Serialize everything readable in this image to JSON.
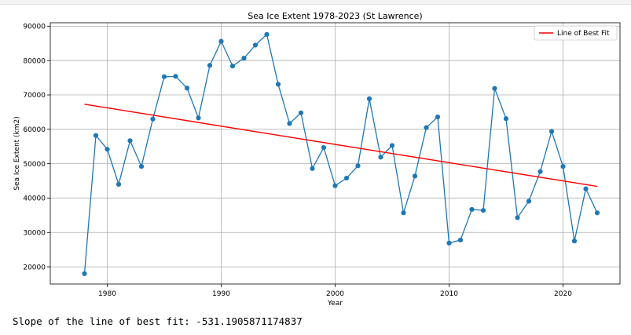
{
  "chart_data": {
    "type": "line",
    "title": "Sea Ice Extent 1978-2023 (St Lawrence)",
    "xlabel": "Year",
    "ylabel": "Sea Ice Extent (km2)",
    "xlim": [
      1975,
      2025
    ],
    "ylim": [
      15000,
      91000
    ],
    "xticks": [
      1980,
      1990,
      2000,
      2010,
      2020
    ],
    "yticks": [
      20000,
      30000,
      40000,
      50000,
      60000,
      70000,
      80000,
      90000
    ],
    "grid": true,
    "legend_position": "top-right",
    "x": [
      1978,
      1979,
      1980,
      1981,
      1982,
      1983,
      1984,
      1985,
      1986,
      1987,
      1988,
      1989,
      1990,
      1991,
      1992,
      1993,
      1994,
      1995,
      1996,
      1997,
      1998,
      1999,
      2000,
      2001,
      2002,
      2003,
      2004,
      2005,
      2006,
      2007,
      2008,
      2009,
      2010,
      2011,
      2012,
      2013,
      2014,
      2015,
      2016,
      2017,
      2018,
      2019,
      2020,
      2021,
      2022,
      2023
    ],
    "series": [
      {
        "color": "#1f77b4",
        "marker": "circle",
        "values": [
          18000,
          58200,
          54200,
          44000,
          56700,
          49200,
          63000,
          75300,
          75400,
          72000,
          63300,
          78600,
          85600,
          78400,
          80700,
          84500,
          87600,
          73100,
          61700,
          64800,
          48600,
          54700,
          43600,
          45800,
          49400,
          68900,
          51900,
          55300,
          35700,
          46400,
          60500,
          63600,
          26900,
          27800,
          36700,
          36400,
          71900,
          63100,
          34300,
          39100,
          47700,
          59400,
          49200,
          27500,
          42700,
          35700
        ]
      },
      {
        "name": "Line of Best Fit",
        "color": "#ff0000",
        "x": [
          1978,
          2023
        ],
        "values": [
          67300,
          43400
        ]
      }
    ]
  },
  "output_text": "Slope of the line of best fit: -531.1905871174837"
}
